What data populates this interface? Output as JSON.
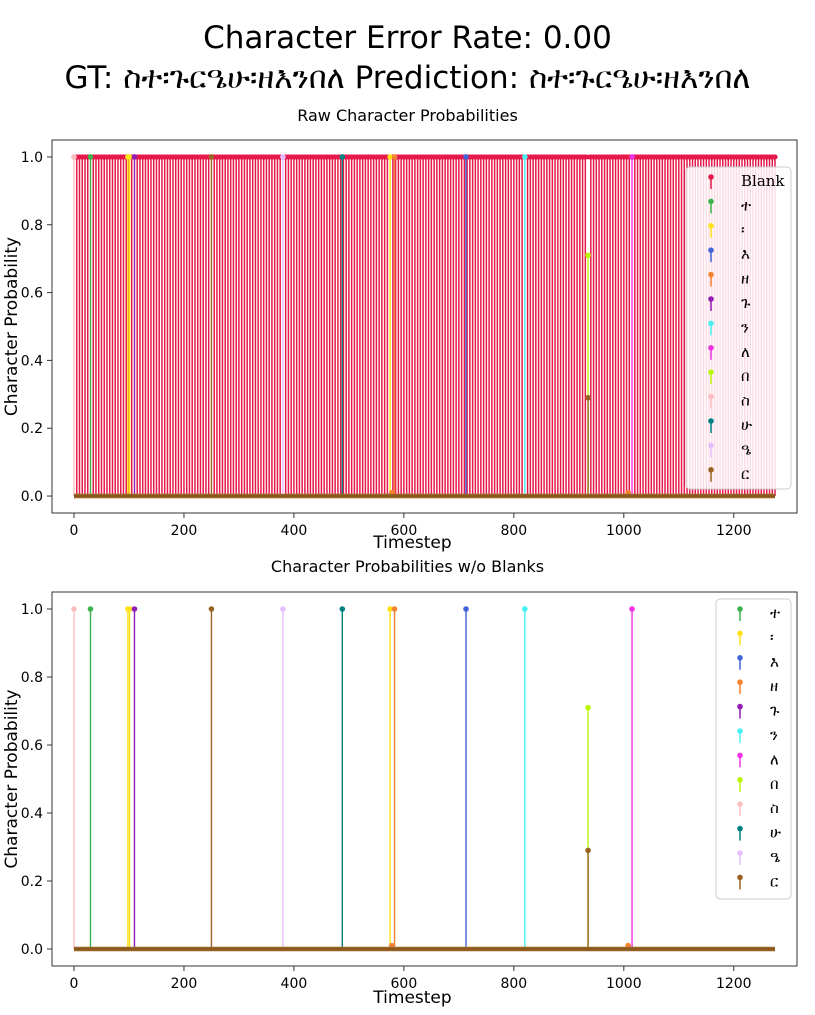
{
  "figure": {
    "title_line1": "Character Error Rate: 0.00",
    "title_line2": "GT: ስተ፡ጉርዔሁ፡ዘእንበለ Prediction: ስተ፡ጉርዔሁ፡ዘእንበለ"
  },
  "chart_data": [
    {
      "type": "stem",
      "title": "Raw Character Probabilities",
      "xlabel": "Timestep",
      "ylabel": "Character Probability",
      "xlim": [
        -40,
        1315
      ],
      "ylim": [
        -0.05,
        1.05
      ],
      "xticks": [
        "0",
        "200",
        "400",
        "600",
        "800",
        "1000",
        "1200"
      ],
      "yticks": [
        "0.0",
        "0.2",
        "0.4",
        "0.6",
        "0.8",
        "1.0"
      ],
      "grid": false,
      "legend_position": "right",
      "timesteps": 1276,
      "legend": [
        "Blank",
        "ተ",
        "፡",
        "እ",
        "ዘ",
        "ጉ",
        "ን",
        "ለ",
        "በ",
        "ስ",
        "ሁ",
        "ዔ",
        "ር"
      ],
      "series": [
        {
          "name": "Blank",
          "color": "#e6194b",
          "note": "probability ≈ 1.0 at every timestep except character spikes",
          "dips": [
            [
              0,
              0.0
            ],
            [
              30,
              0.0
            ],
            [
              98,
              0.0
            ],
            [
              101,
              0.0
            ],
            [
              110,
              0.0
            ],
            [
              250,
              0.0
            ],
            [
              380,
              0.0
            ],
            [
              488,
              0.0
            ],
            [
              575,
              0.0
            ],
            [
              578,
              0.0
            ],
            [
              583,
              0.0
            ],
            [
              713,
              0.0
            ],
            [
              820,
              0.0
            ],
            [
              935,
              0.0
            ],
            [
              1008,
              1.0
            ],
            [
              1015,
              0.0
            ]
          ]
        },
        {
          "name": "ተ",
          "color": "#3cb44b",
          "points": [
            [
              30,
              1.0
            ]
          ]
        },
        {
          "name": "፡",
          "color": "#ffe119",
          "points": [
            [
              98,
              1.0
            ],
            [
              101,
              1.0
            ],
            [
              575,
              1.0
            ]
          ]
        },
        {
          "name": "እ",
          "color": "#4363d8",
          "points": [
            [
              713,
              1.0
            ]
          ]
        },
        {
          "name": "ዘ",
          "color": "#f58231",
          "points": [
            [
              583,
              1.0
            ],
            [
              578,
              0.01
            ],
            [
              1008,
              0.01
            ]
          ]
        },
        {
          "name": "ጉ",
          "color": "#911eb4",
          "points": [
            [
              110,
              1.0
            ]
          ]
        },
        {
          "name": "ን",
          "color": "#46f0f0",
          "points": [
            [
              820,
              1.0
            ]
          ]
        },
        {
          "name": "ለ",
          "color": "#f032e6",
          "points": [
            [
              1015,
              1.0
            ]
          ]
        },
        {
          "name": "በ",
          "color": "#bcf60c",
          "points": [
            [
              935,
              0.71
            ]
          ]
        },
        {
          "name": "ስ",
          "color": "#fabebe",
          "points": [
            [
              0,
              1.0
            ]
          ]
        },
        {
          "name": "ሁ",
          "color": "#008080",
          "points": [
            [
              488,
              1.0
            ]
          ]
        },
        {
          "name": "ዔ",
          "color": "#e6beff",
          "points": [
            [
              380,
              1.0
            ]
          ]
        },
        {
          "name": "ር",
          "color": "#9a6324",
          "points": [
            [
              250,
              1.0
            ],
            [
              935,
              0.29
            ]
          ]
        }
      ]
    },
    {
      "type": "stem",
      "title": "Character Probabilities w/o Blanks",
      "xlabel": "Timestep",
      "ylabel": "Character Probability",
      "xlim": [
        -40,
        1315
      ],
      "ylim": [
        -0.05,
        1.05
      ],
      "xticks": [
        "0",
        "200",
        "400",
        "600",
        "800",
        "1000",
        "1200"
      ],
      "yticks": [
        "0.0",
        "0.2",
        "0.4",
        "0.6",
        "0.8",
        "1.0"
      ],
      "grid": false,
      "legend_position": "upper right",
      "timesteps": 1276,
      "legend": [
        "ተ",
        "፡",
        "እ",
        "ዘ",
        "ጉ",
        "ን",
        "ለ",
        "በ",
        "ስ",
        "ሁ",
        "ዔ",
        "ር"
      ],
      "series": [
        {
          "name": "ተ",
          "color": "#3cb44b",
          "points": [
            [
              30,
              1.0
            ]
          ]
        },
        {
          "name": "፡",
          "color": "#ffe119",
          "points": [
            [
              98,
              1.0
            ],
            [
              101,
              1.0
            ],
            [
              575,
              1.0
            ]
          ]
        },
        {
          "name": "እ",
          "color": "#4363d8",
          "points": [
            [
              713,
              1.0
            ]
          ]
        },
        {
          "name": "ዘ",
          "color": "#f58231",
          "points": [
            [
              583,
              1.0
            ],
            [
              578,
              0.01
            ],
            [
              1008,
              0.01
            ]
          ]
        },
        {
          "name": "ጉ",
          "color": "#911eb4",
          "points": [
            [
              110,
              1.0
            ]
          ]
        },
        {
          "name": "ን",
          "color": "#46f0f0",
          "points": [
            [
              820,
              1.0
            ]
          ]
        },
        {
          "name": "ለ",
          "color": "#f032e6",
          "points": [
            [
              1015,
              1.0
            ]
          ]
        },
        {
          "name": "በ",
          "color": "#bcf60c",
          "points": [
            [
              935,
              0.71
            ]
          ]
        },
        {
          "name": "ስ",
          "color": "#fabebe",
          "points": [
            [
              0,
              1.0
            ]
          ]
        },
        {
          "name": "ሁ",
          "color": "#008080",
          "points": [
            [
              488,
              1.0
            ]
          ]
        },
        {
          "name": "ዔ",
          "color": "#e6beff",
          "points": [
            [
              380,
              1.0
            ]
          ]
        },
        {
          "name": "ር",
          "color": "#9a6324",
          "points": [
            [
              250,
              1.0
            ],
            [
              935,
              0.29
            ]
          ]
        }
      ]
    }
  ]
}
